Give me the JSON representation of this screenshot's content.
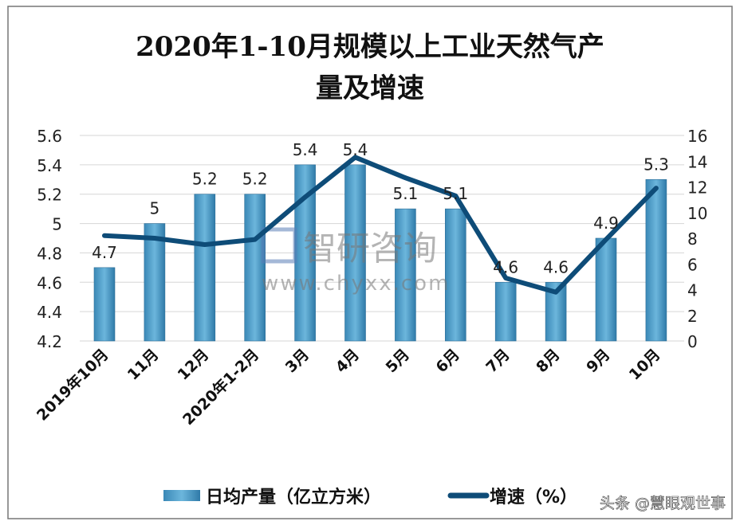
{
  "chart_data": {
    "type": "bar+line",
    "title_lines": [
      "2020年1-10月规模以上工业天然气产",
      "量及增速"
    ],
    "categories": [
      "2019年10月",
      "11月",
      "12月",
      "2020年1-2月",
      "3月",
      "4月",
      "5月",
      "6月",
      "7月",
      "8月",
      "9月",
      "10月"
    ],
    "series": [
      {
        "name": "日均产量（亿立方米）",
        "type": "bar",
        "axis": "left",
        "color": "#4a9cc8",
        "values": [
          4.7,
          5,
          5.2,
          5.2,
          5.4,
          5.4,
          5.1,
          5.1,
          4.6,
          4.6,
          4.9,
          5.3
        ],
        "labels": [
          "4.7",
          "5",
          "5.2",
          "5.2",
          "5.4",
          "5.4",
          "5.1",
          "5.1",
          "4.6",
          "4.6",
          "4.9",
          "5.3"
        ]
      },
      {
        "name": "增速（%）",
        "type": "line",
        "axis": "right",
        "color": "#0e4c78",
        "values": [
          8.2,
          8.0,
          7.5,
          7.9,
          11.2,
          14.3,
          12.7,
          11.3,
          4.9,
          3.8,
          7.9,
          11.9
        ]
      }
    ],
    "y_left": {
      "range": [
        4.2,
        5.6
      ],
      "ticks": [
        "4.2",
        "4.4",
        "4.6",
        "4.8",
        "5",
        "5.2",
        "5.4",
        "5.6"
      ]
    },
    "y_right": {
      "range": [
        0,
        16
      ],
      "ticks": [
        "0",
        "2",
        "4",
        "6",
        "8",
        "10",
        "12",
        "14",
        "16"
      ]
    },
    "grid": true,
    "legend": "bottom"
  },
  "watermark": {
    "logo": "智研咨询",
    "url": "www.chyxx.com"
  },
  "credit": "头条 @慧眼观世事"
}
